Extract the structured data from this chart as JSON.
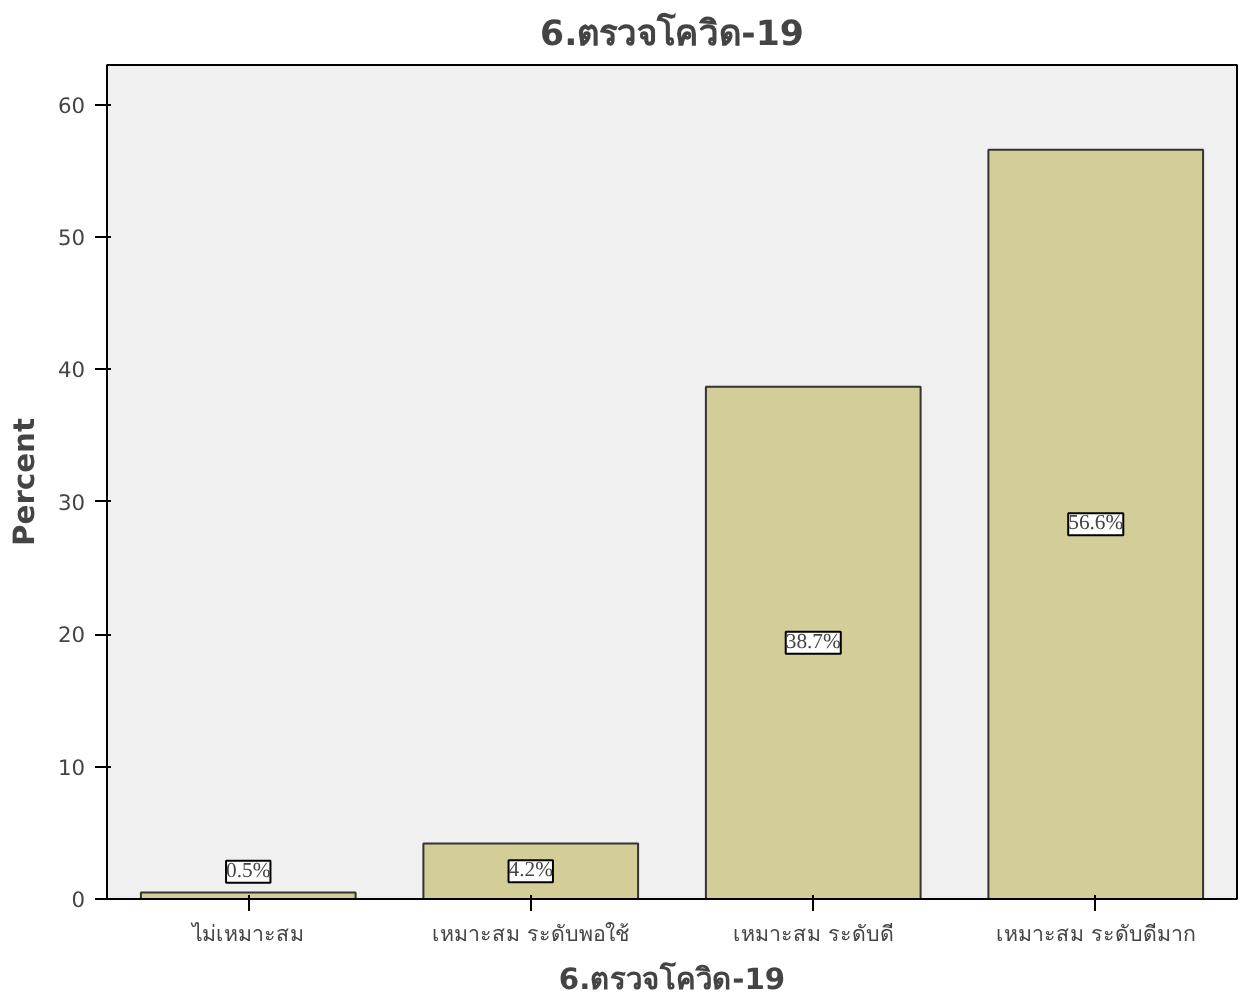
{
  "chart_data": {
    "type": "bar",
    "title": "6.ตรวจโควิด-19",
    "xlabel": "6.ตรวจโควิด-19",
    "ylabel": "Percent",
    "categories": [
      "ไม่เหมาะสม",
      "เหมาะสม ระดับพอใช้",
      "เหมาะสม ระดับดี",
      "เหมาะสม ระดับดีมาก"
    ],
    "values": [
      0.5,
      4.2,
      38.7,
      56.6
    ],
    "color": "#d3ce97",
    "value_labels": [
      "0.5%",
      "4.2%",
      "38.7%",
      "56.6%"
    ],
    "ylim": [
      0,
      63
    ],
    "yticks": [
      0,
      10,
      20,
      30,
      40,
      50,
      60
    ],
    "grid": false
  }
}
